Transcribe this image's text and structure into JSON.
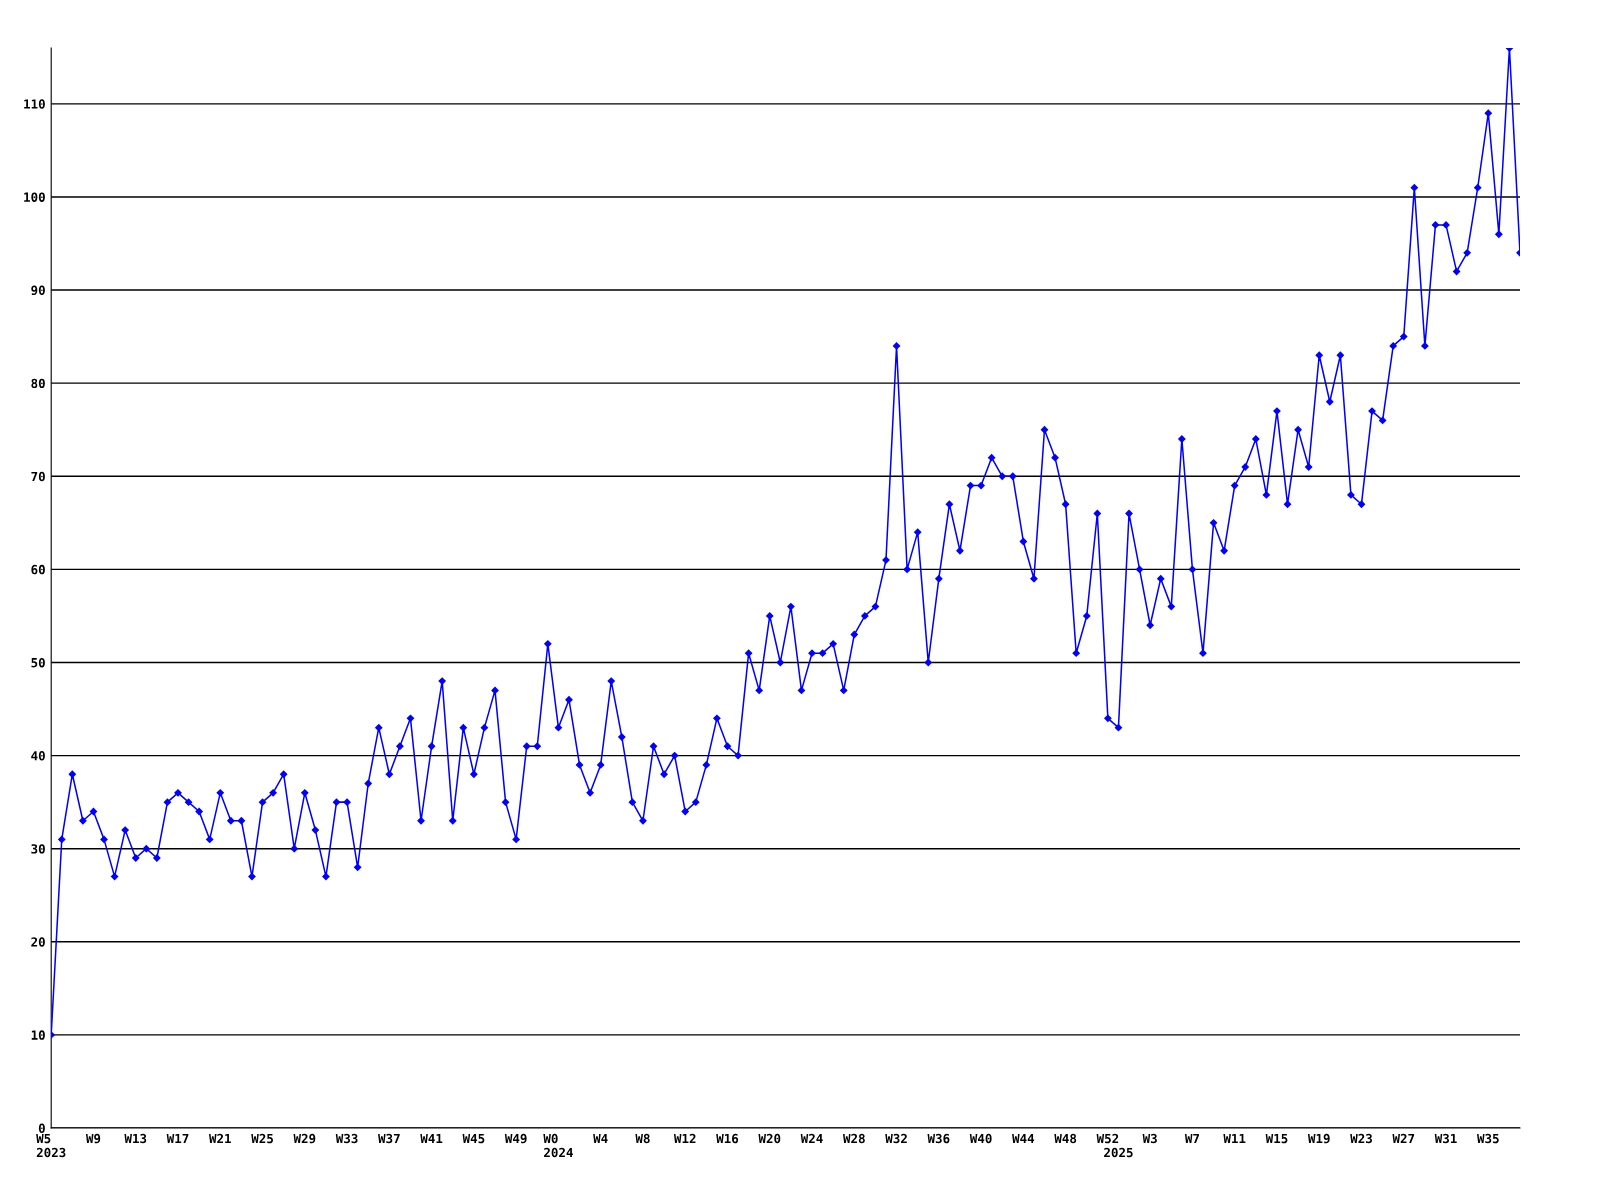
{
  "chart_data": {
    "type": "line",
    "categories": [
      "W5\n2023",
      null,
      null,
      null,
      "W9",
      null,
      null,
      null,
      "W13",
      null,
      null,
      null,
      "W17",
      null,
      null,
      null,
      "W21",
      null,
      null,
      null,
      "W25",
      null,
      null,
      null,
      "W29",
      null,
      null,
      null,
      "W33",
      null,
      null,
      null,
      "W37",
      null,
      null,
      null,
      "W41",
      null,
      null,
      null,
      "W45",
      null,
      null,
      null,
      "W49",
      null,
      null,
      null,
      "W0\n2024",
      null,
      null,
      null,
      "W4",
      null,
      null,
      null,
      "W8",
      null,
      null,
      null,
      "W12",
      null,
      null,
      null,
      "W16",
      null,
      null,
      null,
      "W20",
      null,
      null,
      null,
      "W24",
      null,
      null,
      null,
      "W28",
      null,
      null,
      null,
      "W32",
      null,
      null,
      null,
      "W36",
      null,
      null,
      null,
      "W40",
      null,
      null,
      null,
      "W44",
      null,
      null,
      null,
      "W48",
      null,
      null,
      null,
      "W52",
      "\n2025",
      null,
      null,
      "W3",
      null,
      null,
      null,
      "W7",
      null,
      null,
      null,
      "W11",
      null,
      null,
      null,
      "W15",
      null,
      null,
      null,
      "W19",
      null,
      null,
      null,
      "W23",
      null,
      null,
      null,
      "W27",
      null,
      null,
      null,
      "W31",
      null,
      null,
      null,
      "W35",
      null,
      null,
      null
    ],
    "series": [
      {
        "color": "#0000ff",
        "values": [
          10,
          31,
          38,
          33,
          34,
          31,
          27,
          32,
          29,
          30,
          29,
          35,
          36,
          35,
          34,
          31,
          36,
          33,
          33,
          27,
          35,
          36,
          38,
          30,
          36,
          32,
          27,
          35,
          35,
          28,
          37,
          43,
          38,
          41,
          44,
          33,
          41,
          48,
          33,
          43,
          38,
          43,
          47,
          35,
          31,
          41,
          41,
          52,
          43,
          46,
          39,
          36,
          39,
          48,
          42,
          35,
          33,
          41,
          38,
          40,
          34,
          35,
          39,
          44,
          41,
          40,
          51,
          47,
          55,
          50,
          56,
          47,
          51,
          51,
          52,
          47,
          53,
          55,
          56,
          61,
          84,
          60,
          64,
          50,
          59,
          67,
          62,
          69,
          69,
          72,
          70,
          70,
          63,
          59,
          75,
          72,
          67,
          51,
          55,
          66,
          44,
          43,
          66,
          60,
          54,
          59,
          56,
          74,
          60,
          51,
          65,
          62,
          69,
          71,
          74,
          68,
          77,
          67,
          75,
          71,
          83,
          78,
          83,
          68,
          67,
          77,
          76,
          84,
          85,
          101,
          84,
          97,
          97,
          92,
          94,
          101,
          109,
          96,
          116,
          94
        ]
      }
    ],
    "ylim": [
      0,
      116
    ],
    "yticks": [
      0,
      10,
      20,
      30,
      40,
      50,
      60,
      70,
      80,
      90,
      100,
      110
    ],
    "grid": "y",
    "marker": "diamond",
    "line_style": "solid"
  }
}
